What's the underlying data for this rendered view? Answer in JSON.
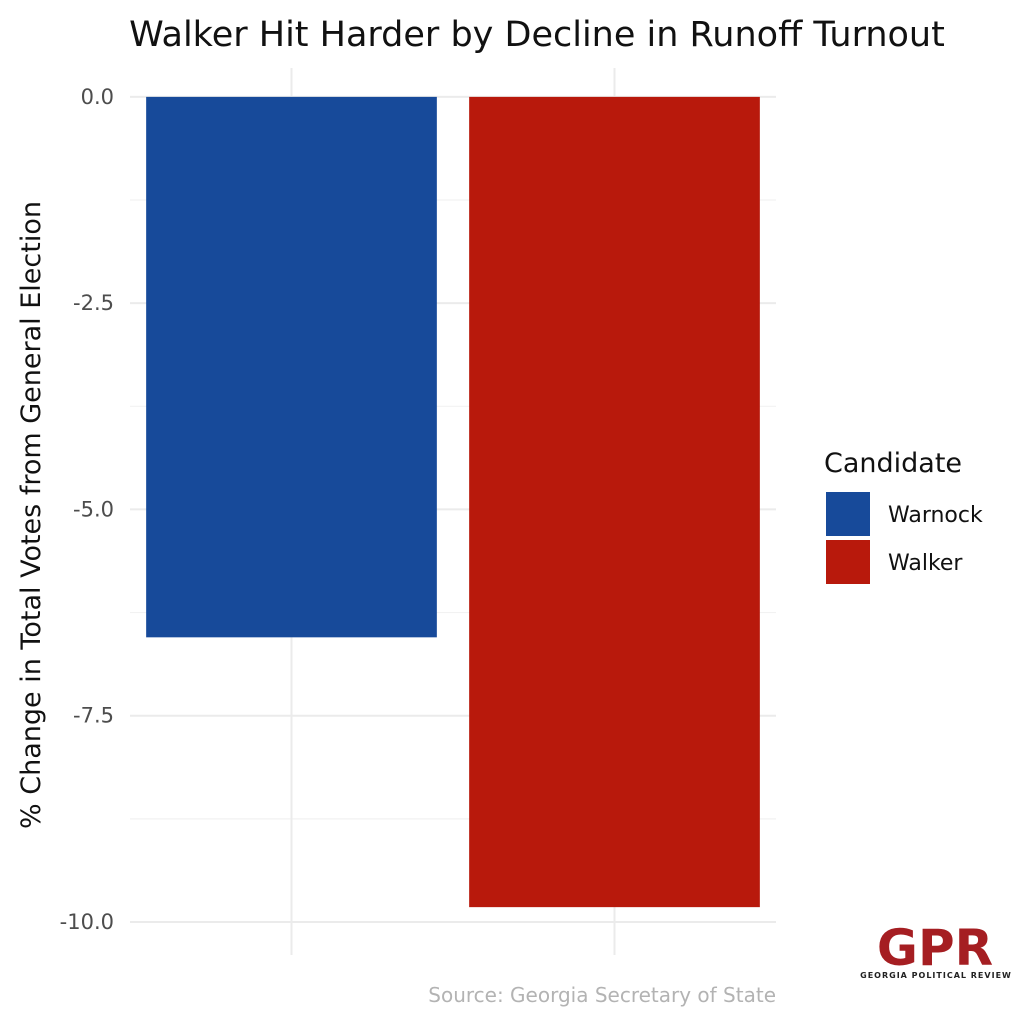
{
  "chart_data": {
    "type": "bar",
    "title": "Walker Hit Harder by Decline in Runoff Turnout",
    "ylabel": "% Change in Total Votes from General Election",
    "xlabel": "",
    "categories": [
      "Warnock",
      "Walker"
    ],
    "values": [
      -6.55,
      -9.82
    ],
    "colors": [
      "#174a9a",
      "#b8190c"
    ],
    "ylim": [
      -10.4,
      0.35
    ],
    "y_ticks": [
      0.0,
      -2.5,
      -5.0,
      -7.5,
      -10.0
    ],
    "y_tick_labels": [
      "0.0",
      "-2.5",
      "-5.0",
      "-7.5",
      "-10.0"
    ],
    "grid": true,
    "legend": {
      "title": "Candidate",
      "placement": "right",
      "entries": [
        "Warnock",
        "Walker"
      ]
    },
    "caption": "Source: Georgia Secretary of State"
  },
  "logo": {
    "mark": "GPR",
    "subtitle": "GEORGIA POLITICAL REVIEW",
    "color": "#a51e22"
  }
}
